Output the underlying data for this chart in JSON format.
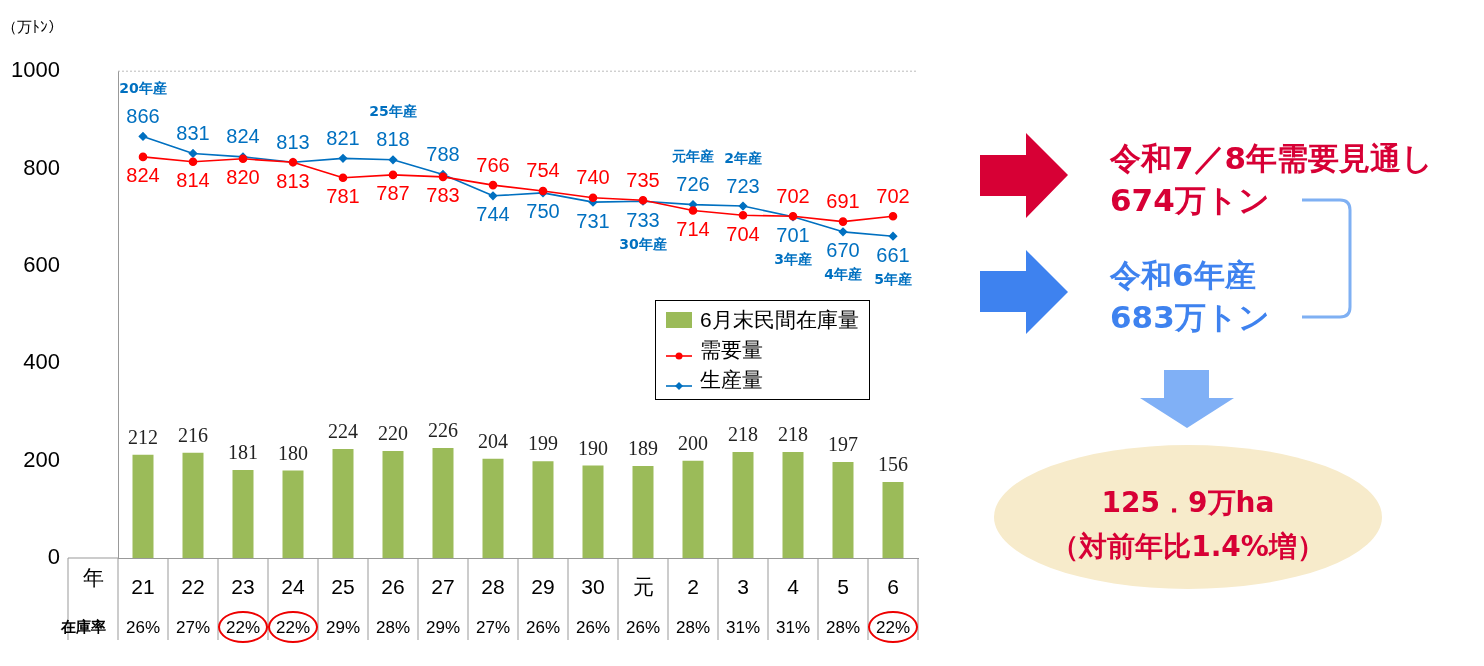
{
  "chart_data": {
    "type": "bar",
    "ylabel": "（万ﾄﾝ）",
    "xlabel": "年",
    "categories": [
      "21",
      "22",
      "23",
      "24",
      "25",
      "26",
      "27",
      "28",
      "29",
      "30",
      "元",
      "2",
      "3",
      "4",
      "5",
      "6"
    ],
    "series": [
      {
        "name": "6月末民間在庫量",
        "color": "#9bbb59",
        "values": [
          212,
          216,
          181,
          180,
          224,
          220,
          226,
          204,
          199,
          190,
          189,
          200,
          218,
          218,
          197,
          156
        ]
      },
      {
        "name": "需要量",
        "type": "line",
        "color": "#ff0000",
        "marker": "circle",
        "values": [
          824,
          814,
          820,
          813,
          781,
          787,
          783,
          766,
          754,
          740,
          735,
          714,
          704,
          702,
          691,
          702
        ]
      },
      {
        "name": "生産量",
        "type": "line",
        "color": "#0070c0",
        "marker": "diamond",
        "values": [
          866,
          831,
          824,
          813,
          821,
          818,
          788,
          744,
          750,
          731,
          733,
          726,
          723,
          701,
          670,
          661
        ]
      }
    ],
    "ylim": [
      0,
      1000
    ],
    "yticks": [
      0,
      200,
      400,
      600,
      800,
      1000
    ],
    "grid": false,
    "legend": "right",
    "data_labels": true,
    "annotations": [
      {
        "text": "20年産",
        "x": "21",
        "y": 866
      },
      {
        "text": "25年産",
        "x": "26",
        "y": 818
      },
      {
        "text": "30年産",
        "x": "元",
        "y": 733
      },
      {
        "text": "元年産",
        "x": "2",
        "y": 726
      },
      {
        "text": "2年産",
        "x": "3",
        "y": 723
      },
      {
        "text": "3年産",
        "x": "4",
        "y": 701
      },
      {
        "text": "4年産",
        "x": "5",
        "y": 670
      },
      {
        "text": "5年産",
        "x": "6",
        "y": 661
      },
      "在庫率",
      "26%",
      "27%",
      "22%",
      "22%",
      "29%",
      "28%",
      "29%",
      "27%",
      "26%",
      "26%",
      "26%",
      "28%",
      "31%",
      "31%",
      "28%",
      "22%",
      "令和7／8年需要見通し",
      "674万トン",
      "令和6年産",
      "683万トン",
      "125．9万ha",
      "（対前年比1.4%増）"
    ]
  }
}
